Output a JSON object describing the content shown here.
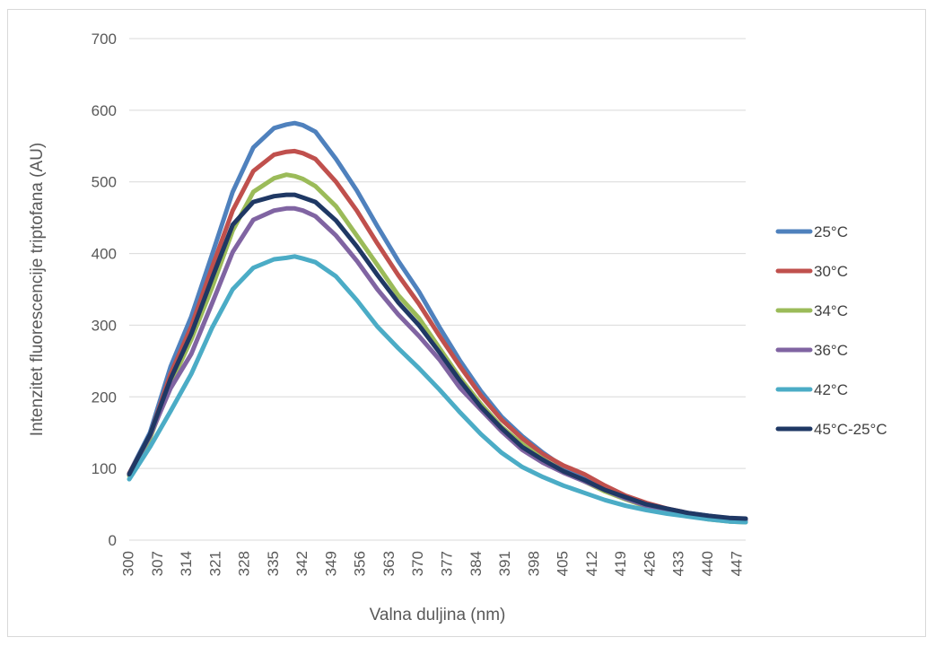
{
  "chart_data": {
    "type": "line",
    "title": "",
    "xlabel": "Valna duljina (nm)",
    "ylabel": "Intenzitet fluorescencije triptofana (AU)",
    "xlim": [
      300,
      449
    ],
    "ylim": [
      0,
      700
    ],
    "y_ticks": [
      0,
      100,
      200,
      300,
      400,
      500,
      600,
      700
    ],
    "x_ticks": [
      300,
      307,
      314,
      321,
      328,
      335,
      342,
      349,
      356,
      363,
      370,
      377,
      384,
      391,
      398,
      405,
      412,
      419,
      426,
      433,
      440,
      447
    ],
    "grid": true,
    "legend_position": "right",
    "x": [
      300,
      305,
      310,
      315,
      320,
      325,
      330,
      335,
      338,
      340,
      342,
      345,
      350,
      355,
      360,
      365,
      370,
      375,
      380,
      385,
      390,
      395,
      400,
      405,
      410,
      415,
      420,
      425,
      430,
      435,
      440,
      445,
      449
    ],
    "series": [
      {
        "name": "25°C",
        "color": "#4f81bd",
        "values": [
          93,
          150,
          242,
          312,
          398,
          486,
          548,
          575,
          580,
          582,
          579,
          570,
          532,
          488,
          438,
          390,
          347,
          297,
          250,
          208,
          172,
          145,
          122,
          102,
          88,
          72,
          60,
          50,
          43,
          38,
          34,
          30,
          29
        ]
      },
      {
        "name": "30°C",
        "color": "#c0504d",
        "values": [
          93,
          146,
          232,
          298,
          380,
          460,
          515,
          538,
          542,
          543,
          540,
          532,
          500,
          460,
          414,
          370,
          330,
          285,
          242,
          202,
          168,
          142,
          120,
          104,
          92,
          76,
          62,
          52,
          44,
          38,
          33,
          29,
          28
        ]
      },
      {
        "name": "34°C",
        "color": "#9bbb59",
        "values": [
          90,
          142,
          218,
          280,
          352,
          432,
          486,
          505,
          510,
          508,
          504,
          494,
          466,
          425,
          384,
          342,
          310,
          268,
          226,
          190,
          158,
          134,
          113,
          96,
          82,
          68,
          57,
          47,
          40,
          34,
          29,
          26,
          25
        ]
      },
      {
        "name": "36°C",
        "color": "#8064a2",
        "values": [
          92,
          145,
          212,
          260,
          330,
          402,
          447,
          460,
          463,
          463,
          460,
          452,
          425,
          390,
          350,
          315,
          285,
          252,
          212,
          182,
          152,
          126,
          108,
          94,
          82,
          70,
          58,
          48,
          42,
          36,
          32,
          29,
          28
        ]
      },
      {
        "name": "42°C",
        "color": "#4bacc6",
        "values": [
          85,
          130,
          180,
          232,
          296,
          350,
          380,
          392,
          394,
          396,
          393,
          388,
          368,
          335,
          298,
          268,
          240,
          210,
          178,
          148,
          122,
          102,
          88,
          76,
          66,
          56,
          48,
          42,
          37,
          33,
          29,
          26,
          25
        ]
      },
      {
        "name": "45°C-25°C",
        "color": "#1f3864",
        "values": [
          92,
          147,
          225,
          288,
          365,
          440,
          472,
          480,
          482,
          482,
          478,
          472,
          446,
          410,
          370,
          332,
          300,
          262,
          222,
          186,
          156,
          130,
          112,
          96,
          84,
          70,
          60,
          50,
          44,
          38,
          34,
          31,
          30
        ]
      }
    ]
  }
}
